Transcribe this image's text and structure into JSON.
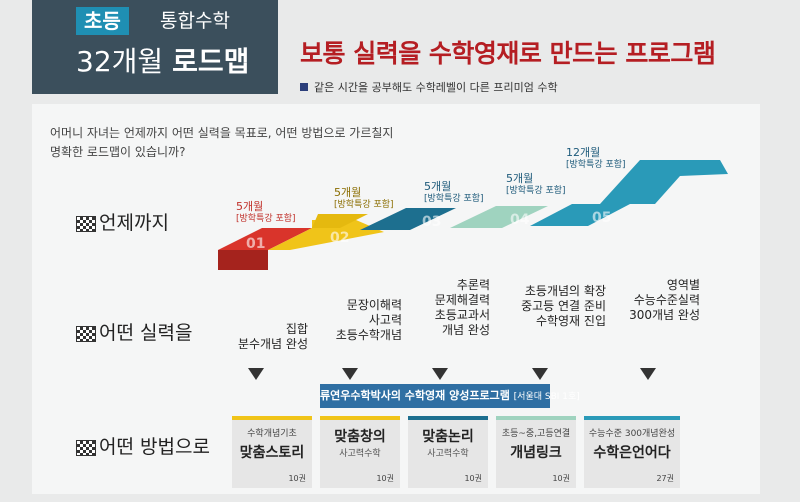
{
  "header": {
    "tag": "초등",
    "subtitle": "통합수학",
    "title_num": "32개월",
    "title_word": "로드맵",
    "headline": "보통 실력을 수학영재로 만드는 프로그램",
    "tagline": "같은 시간을 공부해도 수학레벨이 다른 프리미엄 수학"
  },
  "intro": {
    "line1": "어머니 자녀는 언제까지 어떤 실력을 목표로, 어떤 방법으로 가르칠지",
    "line2": "명확한 로드맵이 있습니까?"
  },
  "rows": {
    "when": "언제까지",
    "skill": "어떤 실력을",
    "method": "어떤 방법으로"
  },
  "steps": [
    {
      "num": "01",
      "months": "5개월",
      "note": "[방학특강 포함]",
      "color": "#d9342b",
      "month_color": "#c0302a",
      "skills": [
        "집합",
        "분수개념 완성"
      ]
    },
    {
      "num": "02",
      "months": "5개월",
      "note": "[방학특강 포함]",
      "color": "#f0c419",
      "month_color": "#8a6d00",
      "skills": [
        "문장이해력",
        "사고력",
        "초등수학개념"
      ]
    },
    {
      "num": "03",
      "months": "5개월",
      "note": "[방학특강 포함]",
      "color": "#1d6f8f",
      "month_color": "#1d5a7a",
      "skills": [
        "추론력",
        "문제해결력",
        "초등교과서",
        "개념 완성"
      ]
    },
    {
      "num": "04",
      "months": "5개월",
      "note": "[방학특강 포함]",
      "color": "#9fd3bf",
      "month_color": "#1d5a7a",
      "skills": [
        "초등개념의 확장",
        "중고등 연결 준비",
        "수학영재 진입"
      ]
    },
    {
      "num": "05",
      "months": "12개월",
      "note": "[방학특강 포함]",
      "color": "#2a9ab8",
      "month_color": "#1d5a7a",
      "skills": [
        "영역별",
        "수능수준실력",
        "300개념 완성"
      ]
    }
  ],
  "banner": {
    "main": "류연우수학박사의 수학영재 양성프로그램",
    "note": "[서울대 SBI 1호]"
  },
  "cards": [
    {
      "top": "수학개념기초",
      "main": "맞춤스토리",
      "sub": "",
      "vol": "10권",
      "accent": "#f0c419"
    },
    {
      "top": "",
      "main": "맞춤창의",
      "sub": "사고력수학",
      "vol": "10권",
      "accent": "#f0c419"
    },
    {
      "top": "",
      "main": "맞춤논리",
      "sub": "사고력수학",
      "vol": "10권",
      "accent": "#1d6f8f"
    },
    {
      "top": "초등~중,고등연결",
      "main": "개념링크",
      "sub": "",
      "vol": "10권",
      "accent": "#9fd3bf"
    },
    {
      "top": "수능수준 300개념완성",
      "main": "수학은언어다",
      "sub": "",
      "vol": "27권",
      "accent": "#2a9ab8"
    }
  ]
}
